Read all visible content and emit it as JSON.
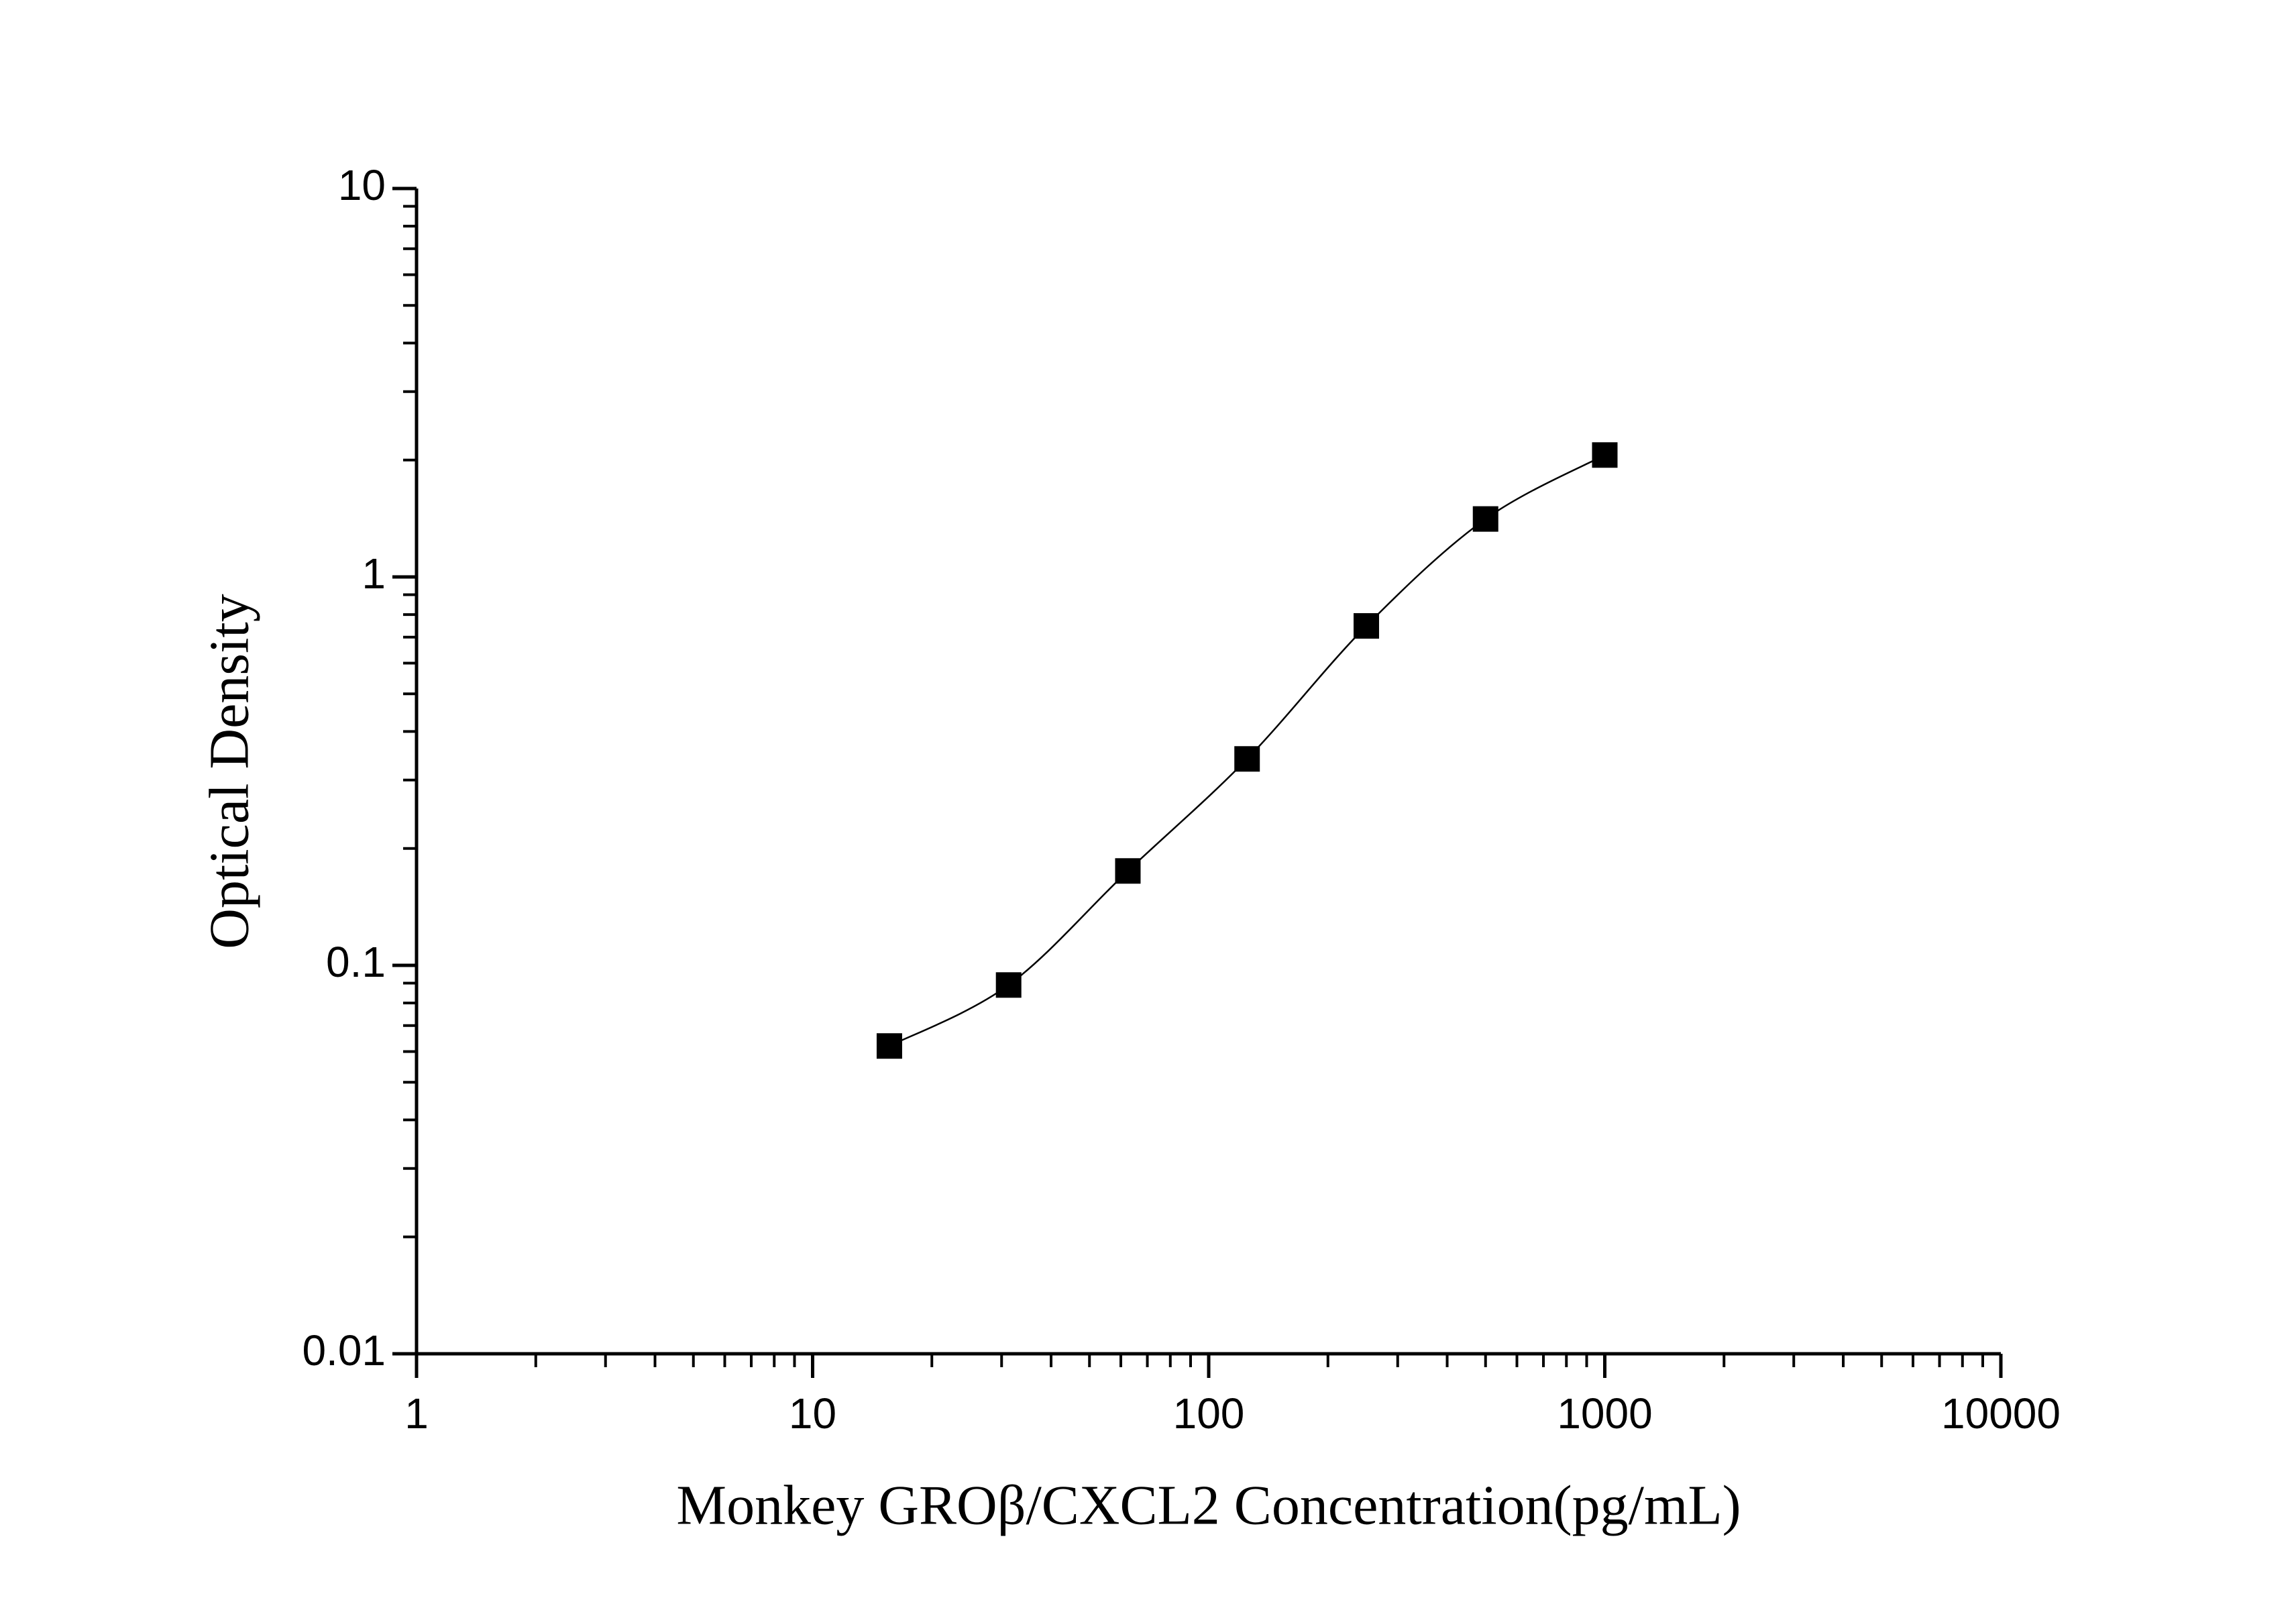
{
  "chart_data": {
    "type": "scatter",
    "x_label": "Monkey GROβ/CXCL2 Concentration(pg/mL)",
    "y_label": "Optical Density",
    "xscale": "log",
    "yscale": "log",
    "xlim": [
      1,
      10000
    ],
    "xticks": [
      1,
      10,
      100,
      1000,
      10000
    ],
    "ylim": [
      0.01,
      10
    ],
    "yticks": [
      0.01,
      0.1,
      1,
      10
    ],
    "series": [
      {
        "x": [
          15.625,
          31.25,
          62.5,
          125,
          250,
          500,
          1000
        ],
        "values": [
          0.062,
          0.089,
          0.175,
          0.34,
          0.748,
          1.41,
          2.06
        ],
        "color": "#000000"
      }
    ],
    "fit_curve": true,
    "grid": false
  }
}
